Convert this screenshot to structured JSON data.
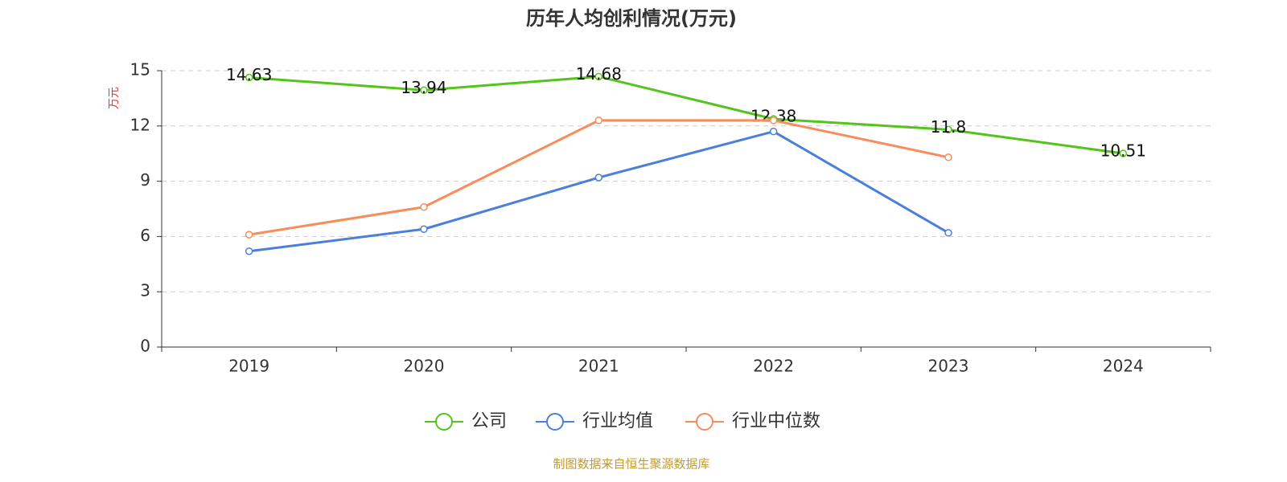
{
  "chart_data": {
    "type": "line",
    "title": "历年人均创利情况(万元)",
    "y_label": "万元",
    "source": "制图数据来自恒生聚源数据库",
    "categories": [
      "2019",
      "2020",
      "2021",
      "2022",
      "2023",
      "2024"
    ],
    "series": [
      {
        "name": "公司",
        "color": "#52c41a",
        "values": [
          14.63,
          13.94,
          14.68,
          12.38,
          11.8,
          10.51
        ],
        "show_labels": true
      },
      {
        "name": "行业均值",
        "color": "#4a7fdc",
        "values": [
          5.2,
          6.4,
          9.2,
          11.7,
          6.2,
          null
        ]
      },
      {
        "name": "行业中位数",
        "color": "#f88c5a",
        "values": [
          6.1,
          7.6,
          12.3,
          12.3,
          10.3,
          null
        ]
      }
    ],
    "ylim": [
      0,
      15
    ],
    "yticks": [
      0,
      3,
      6,
      9,
      12,
      15
    ],
    "grid": true,
    "legend": "bottom"
  }
}
